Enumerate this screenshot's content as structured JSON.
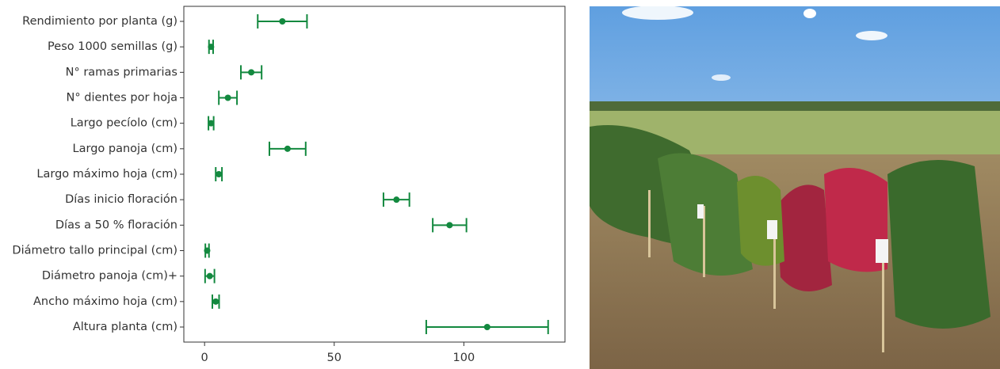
{
  "chart_data": {
    "type": "errorbar",
    "orientation": "horizontal",
    "categories": [
      "Rendimiento por planta (g)",
      "Peso 1000 semillas (g)",
      "N° ramas primarias",
      "N° dientes por hoja",
      "Largo pecíolo (cm)",
      "Largo panoja (cm)",
      "Largo máximo hoja (cm)",
      "Días inicio floración",
      "Días a 50 % floración",
      "Diámetro tallo principal (cm)",
      "Diámetro panoja (cm)+",
      "Ancho máximo hoja (cm)",
      "Altura planta (cm)"
    ],
    "values": [
      30,
      2.5,
      18,
      9,
      2.5,
      32,
      5.5,
      74,
      94.5,
      1,
      2,
      4.3,
      109
    ],
    "errors": [
      9.5,
      0.8,
      4,
      3.5,
      1,
      7,
      1.2,
      5,
      6.5,
      0.7,
      1.8,
      1.3,
      23.5
    ],
    "color": "#13893f",
    "xlim": [
      -8,
      139
    ],
    "xticks": [
      0,
      50,
      100
    ],
    "grid": false
  }
}
